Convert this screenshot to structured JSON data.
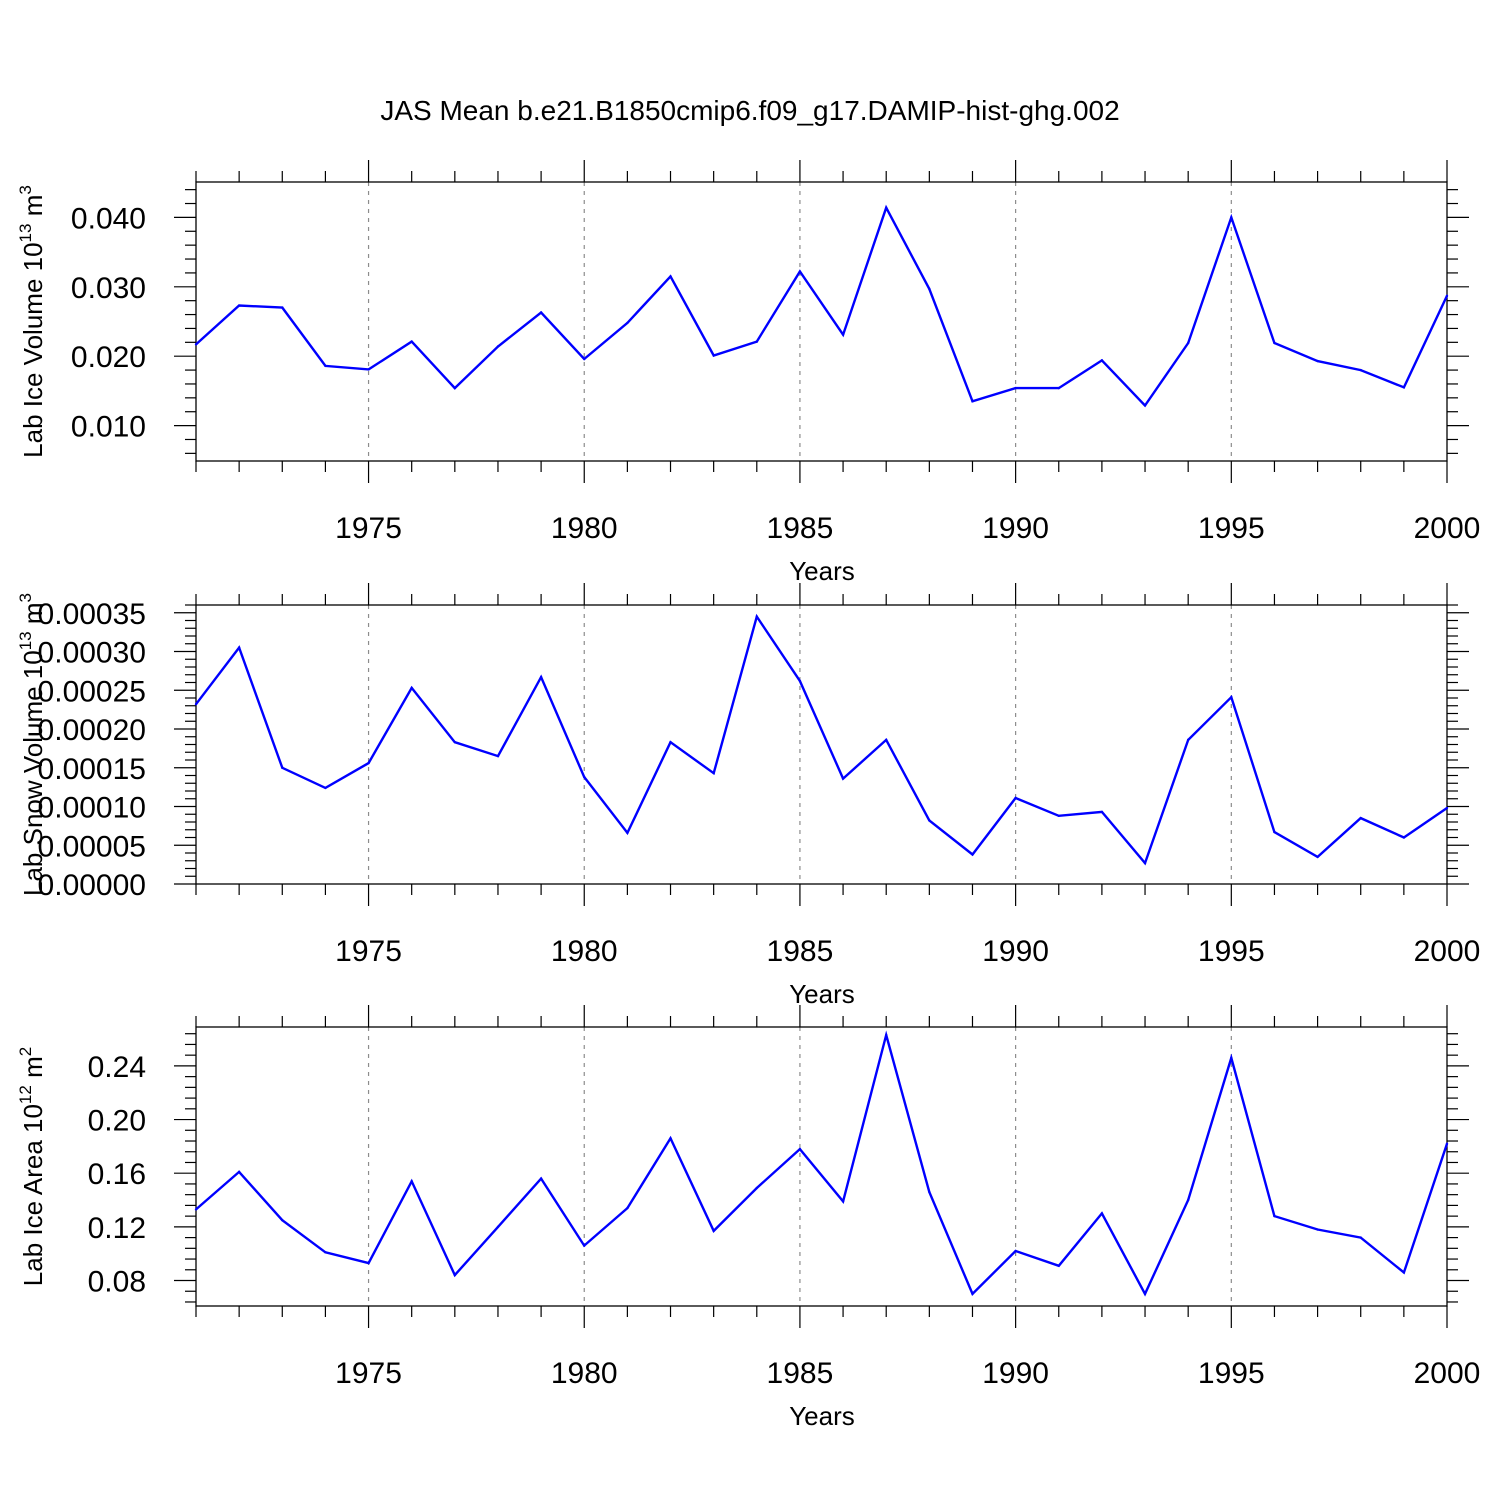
{
  "title": "JAS Mean b.e21.B1850cmip6.f09_g17.DAMIP-hist-ghg.002",
  "colors": {
    "series": "#0000ff",
    "grid": "#8c8c8c",
    "axis": "#000000"
  },
  "chart_data": [
    {
      "type": "line",
      "title": "JAS Mean b.e21.B1850cmip6.f09_g17.DAMIP-hist-ghg.002",
      "xlabel": "Years",
      "ylabel": {
        "text": "Lab Ice Volume 10",
        "sup": "13",
        "unit": " m",
        "unit_sup": "3"
      },
      "xlim": [
        1971,
        2000
      ],
      "ylim": [
        0.0049,
        0.0451
      ],
      "xticks": [
        1975,
        1980,
        1985,
        1990,
        1995,
        2000
      ],
      "xtick_labels": [
        "1975",
        "1980",
        "1985",
        "1990",
        "1995",
        "2000"
      ],
      "yticks": [
        0.01,
        0.02,
        0.03,
        0.04
      ],
      "ytick_labels": [
        "0.010",
        "0.020",
        "0.030",
        "0.040"
      ],
      "y_minor_step": 0.002,
      "grid": "vertical dashed at major x ticks",
      "x": [
        1971,
        1972,
        1973,
        1974,
        1975,
        1976,
        1977,
        1978,
        1979,
        1980,
        1981,
        1982,
        1983,
        1984,
        1985,
        1986,
        1987,
        1988,
        1989,
        1990,
        1991,
        1992,
        1993,
        1994,
        1995,
        1996,
        1997,
        1998,
        1999,
        2000
      ],
      "series": [
        {
          "name": "Lab Ice Volume",
          "values": [
            0.0217,
            0.0273,
            0.027,
            0.0186,
            0.0181,
            0.0221,
            0.0154,
            0.0214,
            0.0263,
            0.0196,
            0.0248,
            0.0315,
            0.0201,
            0.0221,
            0.0322,
            0.0231,
            0.0414,
            0.0297,
            0.0135,
            0.0154,
            0.0154,
            0.0194,
            0.0129,
            0.0219,
            0.04,
            0.0219,
            0.0193,
            0.018,
            0.0155,
            0.0287
          ]
        }
      ]
    },
    {
      "type": "line",
      "xlabel": "Years",
      "ylabel": {
        "text": "Lab Snow Volume 10",
        "sup": "13",
        "unit": " m",
        "unit_sup": "3"
      },
      "xlim": [
        1971,
        2000
      ],
      "ylim": [
        0.0,
        0.00036
      ],
      "xticks": [
        1975,
        1980,
        1985,
        1990,
        1995,
        2000
      ],
      "xtick_labels": [
        "1975",
        "1980",
        "1985",
        "1990",
        "1995",
        "2000"
      ],
      "yticks": [
        0.0,
        5e-05,
        0.0001,
        0.00015,
        0.0002,
        0.00025,
        0.0003,
        0.00035
      ],
      "ytick_labels": [
        "0.00000",
        "0.00005",
        "0.00010",
        "0.00015",
        "0.00020",
        "0.00025",
        "0.00030",
        "0.00035"
      ],
      "y_minor_step": 1e-05,
      "grid": "vertical dashed at major x ticks",
      "x": [
        1971,
        1972,
        1973,
        1974,
        1975,
        1976,
        1977,
        1978,
        1979,
        1980,
        1981,
        1982,
        1983,
        1984,
        1985,
        1986,
        1987,
        1988,
        1989,
        1990,
        1991,
        1992,
        1993,
        1994,
        1995,
        1996,
        1997,
        1998,
        1999,
        2000
      ],
      "series": [
        {
          "name": "Lab Snow Volume",
          "values": [
            0.000232,
            0.000305,
            0.00015,
            0.000124,
            0.000156,
            0.000253,
            0.000183,
            0.000165,
            0.000267,
            0.000138,
            6.6e-05,
            0.000183,
            0.000143,
            0.000345,
            0.000262,
            0.000136,
            0.000186,
            8.2e-05,
            3.8e-05,
            0.000111,
            8.8e-05,
            9.3e-05,
            2.7e-05,
            0.000186,
            0.000241,
            6.7e-05,
            3.5e-05,
            8.5e-05,
            6e-05,
            9.8e-05
          ]
        }
      ]
    },
    {
      "type": "line",
      "xlabel": "Years",
      "ylabel": {
        "text": "Lab Ice Area 10",
        "sup": "12",
        "unit": " m",
        "unit_sup": "2"
      },
      "xlim": [
        1971,
        2000
      ],
      "ylim": [
        0.061,
        0.269
      ],
      "xticks": [
        1975,
        1980,
        1985,
        1990,
        1995,
        2000
      ],
      "xtick_labels": [
        "1975",
        "1980",
        "1985",
        "1990",
        "1995",
        "2000"
      ],
      "yticks": [
        0.08,
        0.12,
        0.16,
        0.2,
        0.24
      ],
      "ytick_labels": [
        "0.08",
        "0.12",
        "0.16",
        "0.20",
        "0.24"
      ],
      "y_minor_step": 0.008,
      "grid": "vertical dashed at major x ticks",
      "x": [
        1971,
        1972,
        1973,
        1974,
        1975,
        1976,
        1977,
        1978,
        1979,
        1980,
        1981,
        1982,
        1983,
        1984,
        1985,
        1986,
        1987,
        1988,
        1989,
        1990,
        1991,
        1992,
        1993,
        1994,
        1995,
        1996,
        1997,
        1998,
        1999,
        2000
      ],
      "series": [
        {
          "name": "Lab Ice Area",
          "values": [
            0.133,
            0.161,
            0.125,
            0.101,
            0.093,
            0.154,
            0.084,
            0.12,
            0.156,
            0.106,
            0.134,
            0.186,
            0.117,
            0.149,
            0.178,
            0.139,
            0.263,
            0.146,
            0.07,
            0.102,
            0.091,
            0.13,
            0.07,
            0.14,
            0.246,
            0.128,
            0.118,
            0.112,
            0.086,
            0.182
          ]
        }
      ]
    }
  ]
}
